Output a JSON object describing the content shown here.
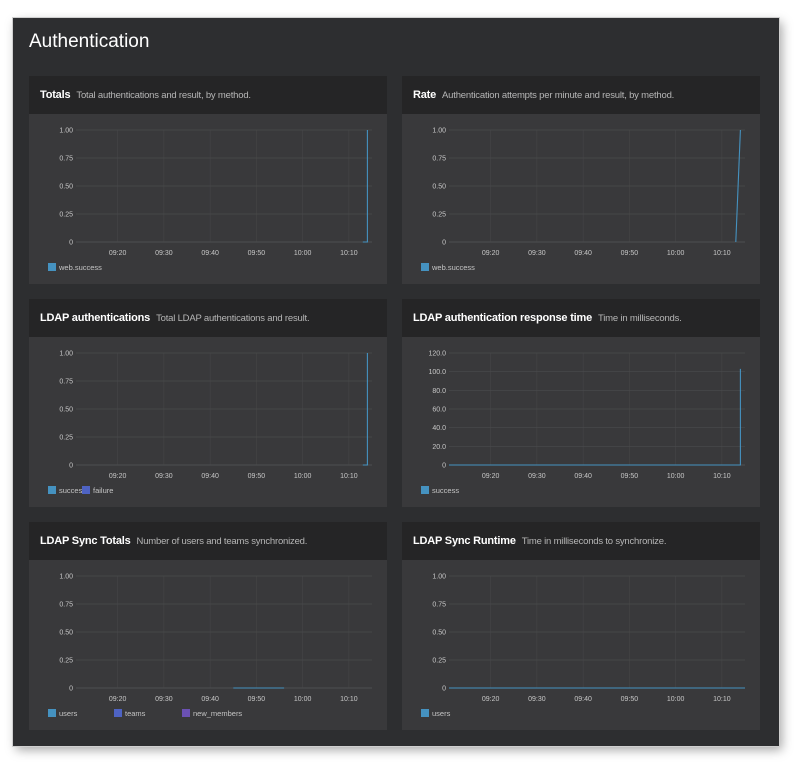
{
  "page": {
    "title": "Authentication"
  },
  "colors": {
    "background": "#2d2e30",
    "panel": "#39393b",
    "panel_header": "#252526",
    "grid": "#4a4b4d",
    "series_blue": "#4592c0",
    "series_indigo": "#4e63c3",
    "series_purple": "#6b51b3"
  },
  "panels": [
    {
      "title": "Totals",
      "subtitle": "Total authentications and result, by method.",
      "legend": [
        {
          "label": "web.success",
          "color": "#4592c0"
        }
      ]
    },
    {
      "title": "Rate",
      "subtitle": "Authentication attempts per minute and result, by method.",
      "legend": [
        {
          "label": "web.success",
          "color": "#4592c0"
        }
      ]
    },
    {
      "title": "LDAP authentications",
      "subtitle": "Total LDAP authentications and result.",
      "legend": [
        {
          "label": "success",
          "color": "#4592c0"
        },
        {
          "label": "failure",
          "color": "#4e63c3"
        }
      ]
    },
    {
      "title": "LDAP authentication response time",
      "subtitle": "Time in milliseconds.",
      "legend": [
        {
          "label": "success",
          "color": "#4592c0"
        }
      ]
    },
    {
      "title": "LDAP Sync Totals",
      "subtitle": "Number of users and teams synchronized.",
      "legend": [
        {
          "label": "users",
          "color": "#4592c0"
        },
        {
          "label": "teams",
          "color": "#4e63c3"
        },
        {
          "label": "new_members",
          "color": "#6b51b3"
        }
      ]
    },
    {
      "title": "LDAP Sync Runtime",
      "subtitle": "Time in milliseconds to synchronize.",
      "legend": [
        {
          "label": "users",
          "color": "#4592c0"
        }
      ]
    }
  ],
  "chart_data": [
    {
      "type": "line",
      "title": "Totals",
      "x_ticks": [
        "09:20",
        "09:30",
        "09:40",
        "09:50",
        "10:00",
        "10:10"
      ],
      "y_ticks": [
        "1.00",
        "0.75",
        "0.50",
        "0.25",
        "0"
      ],
      "ylim": [
        0,
        1
      ],
      "xlim_minutes": [
        "09:11",
        "10:15"
      ],
      "grid": true,
      "legend_position": "bottom-left",
      "series": [
        {
          "name": "web.success",
          "color": "#4592c0",
          "points": [
            [
              "10:13",
              0
            ],
            [
              "10:14",
              0
            ],
            [
              "10:14",
              1
            ]
          ]
        }
      ]
    },
    {
      "type": "line",
      "title": "Rate",
      "x_ticks": [
        "09:20",
        "09:30",
        "09:40",
        "09:50",
        "10:00",
        "10:10"
      ],
      "y_ticks": [
        "1.00",
        "0.75",
        "0.50",
        "0.25",
        "0"
      ],
      "ylim": [
        0,
        1
      ],
      "xlim_minutes": [
        "09:11",
        "10:15"
      ],
      "grid": true,
      "legend_position": "bottom-left",
      "series": [
        {
          "name": "web.success",
          "color": "#4592c0",
          "points": [
            [
              "10:13",
              0
            ],
            [
              "10:14",
              1
            ]
          ]
        }
      ]
    },
    {
      "type": "line",
      "title": "LDAP authentications",
      "x_ticks": [
        "09:20",
        "09:30",
        "09:40",
        "09:50",
        "10:00",
        "10:10"
      ],
      "y_ticks": [
        "1.00",
        "0.75",
        "0.50",
        "0.25",
        "0"
      ],
      "ylim": [
        0,
        1
      ],
      "xlim_minutes": [
        "09:11",
        "10:15"
      ],
      "grid": true,
      "legend_position": "bottom-left",
      "series": [
        {
          "name": "success",
          "color": "#4592c0",
          "points": [
            [
              "10:13",
              0
            ],
            [
              "10:14",
              0
            ],
            [
              "10:14",
              1
            ]
          ]
        },
        {
          "name": "failure",
          "color": "#4e63c3",
          "points": []
        }
      ]
    },
    {
      "type": "line",
      "title": "LDAP authentication response time",
      "x_ticks": [
        "09:20",
        "09:30",
        "09:40",
        "09:50",
        "10:00",
        "10:10"
      ],
      "y_ticks": [
        "120.0",
        "100.0",
        "80.0",
        "60.0",
        "40.0",
        "20.0",
        "0"
      ],
      "ylim": [
        0,
        120
      ],
      "xlim_minutes": [
        "09:11",
        "10:15"
      ],
      "grid": true,
      "legend_position": "bottom-left",
      "series": [
        {
          "name": "success",
          "color": "#4592c0",
          "points": [
            [
              "09:11",
              0
            ],
            [
              "10:14",
              0
            ],
            [
              "10:14",
              103
            ]
          ]
        }
      ]
    },
    {
      "type": "line",
      "title": "LDAP Sync Totals",
      "x_ticks": [
        "09:20",
        "09:30",
        "09:40",
        "09:50",
        "10:00",
        "10:10"
      ],
      "y_ticks": [
        "1.00",
        "0.75",
        "0.50",
        "0.25",
        "0"
      ],
      "ylim": [
        0,
        1
      ],
      "xlim_minutes": [
        "09:11",
        "10:15"
      ],
      "grid": true,
      "legend_position": "bottom-left",
      "series": [
        {
          "name": "users",
          "color": "#4592c0",
          "points": [
            [
              "09:45",
              0
            ],
            [
              "09:56",
              0
            ]
          ]
        },
        {
          "name": "teams",
          "color": "#4e63c3",
          "points": []
        },
        {
          "name": "new_members",
          "color": "#6b51b3",
          "points": []
        }
      ]
    },
    {
      "type": "line",
      "title": "LDAP Sync Runtime",
      "x_ticks": [
        "09:20",
        "09:30",
        "09:40",
        "09:50",
        "10:00",
        "10:10"
      ],
      "y_ticks": [
        "1.00",
        "0.75",
        "0.50",
        "0.25",
        "0"
      ],
      "ylim": [
        0,
        1
      ],
      "xlim_minutes": [
        "09:11",
        "10:15"
      ],
      "grid": true,
      "legend_position": "bottom-left",
      "series": [
        {
          "name": "users",
          "color": "#4592c0",
          "points": [
            [
              "09:11",
              0
            ],
            [
              "10:15",
              0
            ]
          ]
        }
      ]
    }
  ]
}
